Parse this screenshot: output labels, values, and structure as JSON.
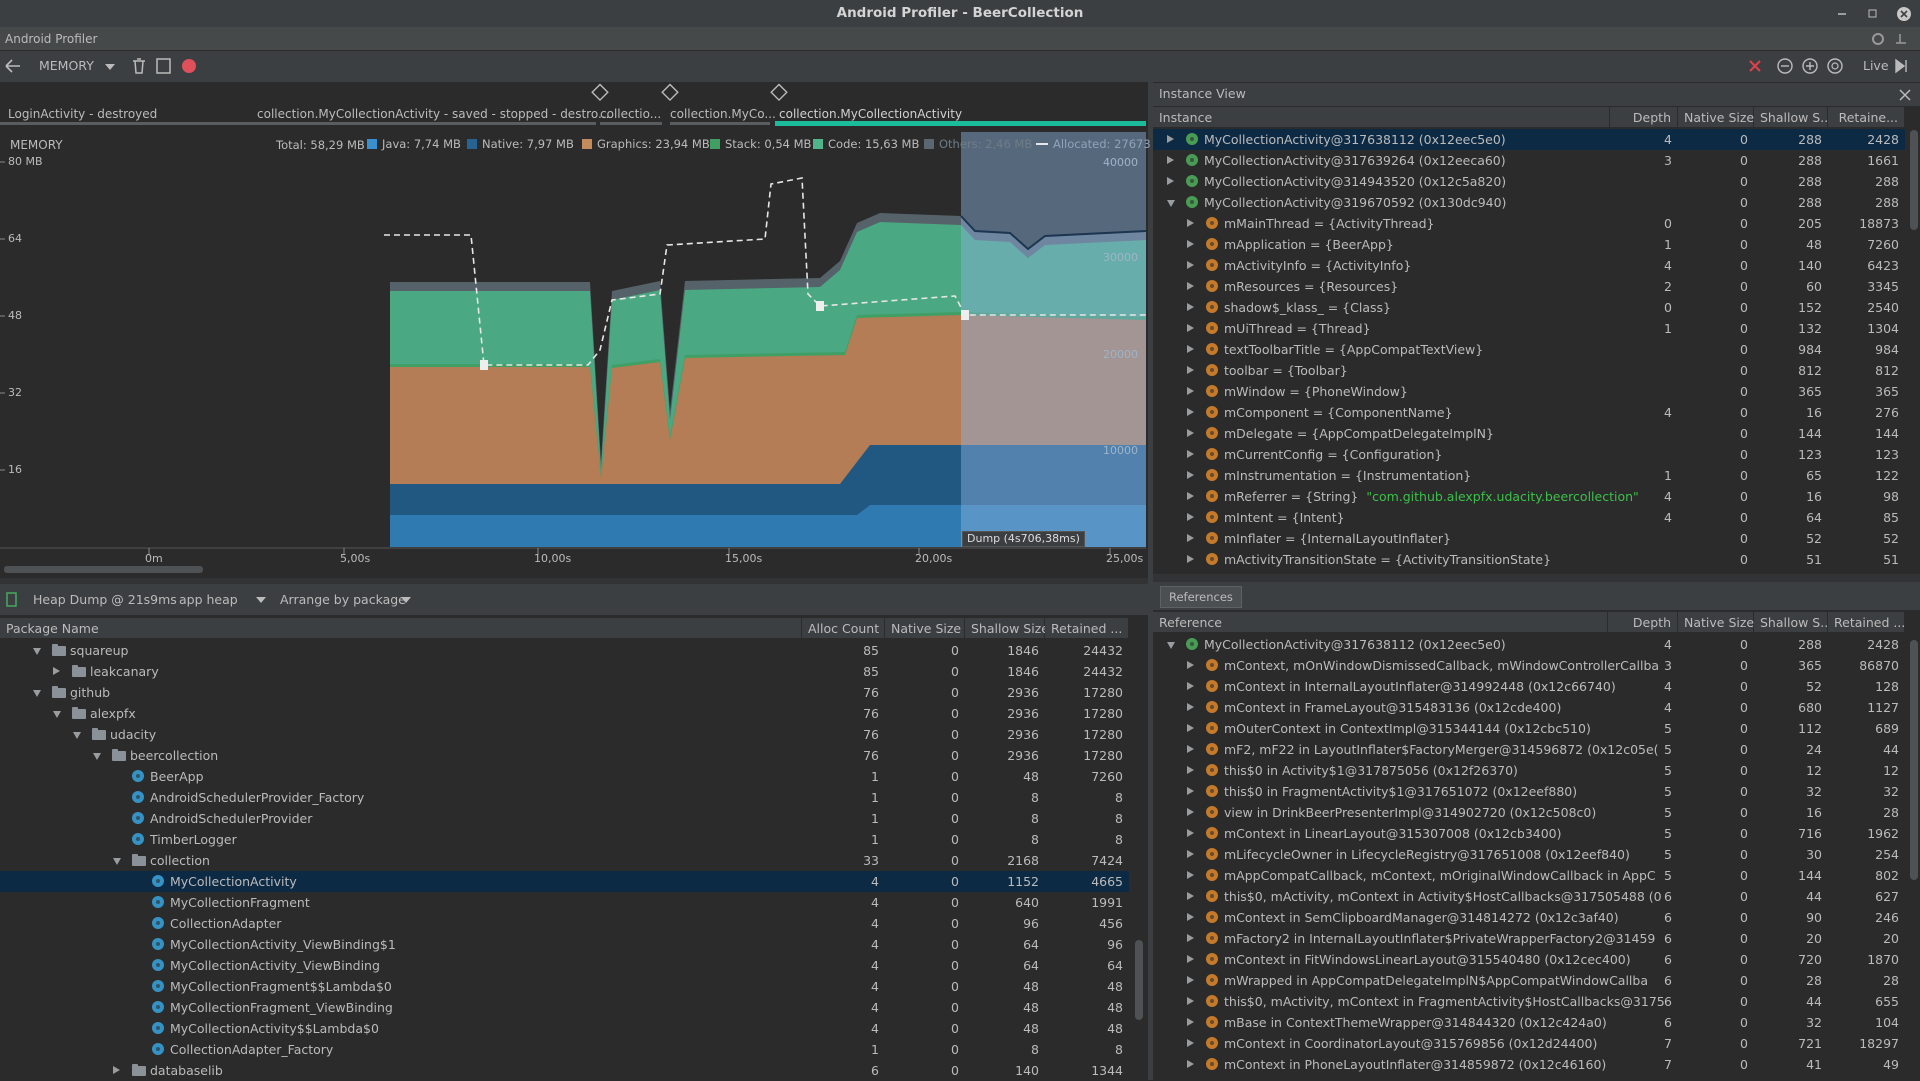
{
  "window": {
    "title": "Android Profiler - BeerCollection",
    "menu": "Android Profiler"
  },
  "toolbar": {
    "profiler": "MEMORY",
    "live": "Live"
  },
  "timeline": {
    "activities": [
      "LoginActivity - destroyed",
      "collection.MyCollectionActivity - saved - stopped - destro...",
      "collectio...",
      "collection.MyCo...",
      "collection.MyCollectionActivity"
    ],
    "dump_label": "Dump (4s706,38ms)"
  },
  "memory": {
    "label": "MEMORY",
    "total": "Total: 58,29 MB",
    "legend": [
      {
        "label": "Java: 7,74 MB",
        "color": "#3a8fcf"
      },
      {
        "label": "Native: 7,97 MB",
        "color": "#276392"
      },
      {
        "label": "Graphics: 23,94 MB",
        "color": "#c38a5b"
      },
      {
        "label": "Stack: 0,54 MB",
        "color": "#3f9f65"
      },
      {
        "label": "Code: 15,63 MB",
        "color": "#4fb58a"
      },
      {
        "label": "Others: 2,46 MB",
        "color": "#5b6770"
      }
    ],
    "allocated": "Allocated: 27673",
    "y_labels": [
      "80 MB",
      "64",
      "48",
      "32",
      "16"
    ],
    "y2_labels": [
      "40000",
      "30000",
      "20000",
      "10000"
    ],
    "time_labels": [
      "0m",
      "5,00s",
      "10,00s",
      "15,00s",
      "20,00s",
      "25,00s"
    ]
  },
  "heap_dump": {
    "title": "Heap Dump @ 21s9ms",
    "heap": "app heap",
    "arrange": "Arrange by package",
    "columns": [
      "Package Name",
      "Alloc Count",
      "Native Size",
      "Shallow Size",
      "Retained ..."
    ],
    "rows": [
      {
        "name": "squareup",
        "values": [
          85,
          0,
          1846,
          24432
        ]
      },
      {
        "name": "leakcanary",
        "values": [
          85,
          0,
          1846,
          24432
        ]
      },
      {
        "name": "github",
        "values": [
          76,
          0,
          2936,
          17280
        ]
      },
      {
        "name": "alexpfx",
        "values": [
          76,
          0,
          2936,
          17280
        ]
      },
      {
        "name": "udacity",
        "values": [
          76,
          0,
          2936,
          17280
        ]
      },
      {
        "name": "beercollection",
        "values": [
          76,
          0,
          2936,
          17280
        ]
      },
      {
        "name": "BeerApp",
        "values": [
          1,
          0,
          48,
          7260
        ]
      },
      {
        "name": "AndroidSchedulerProvider_Factory",
        "values": [
          1,
          0,
          8,
          8
        ]
      },
      {
        "name": "AndroidSchedulerProvider",
        "values": [
          1,
          0,
          8,
          8
        ]
      },
      {
        "name": "TimberLogger",
        "values": [
          1,
          0,
          8,
          8
        ]
      },
      {
        "name": "collection",
        "values": [
          33,
          0,
          2168,
          7424
        ]
      },
      {
        "name": "MyCollectionActivity",
        "values": [
          4,
          0,
          1152,
          4665
        ]
      },
      {
        "name": "MyCollectionFragment",
        "values": [
          4,
          0,
          640,
          1991
        ]
      },
      {
        "name": "CollectionAdapter",
        "values": [
          4,
          0,
          96,
          456
        ]
      },
      {
        "name": "MyCollectionActivity_ViewBinding$1",
        "values": [
          4,
          0,
          64,
          96
        ]
      },
      {
        "name": "MyCollectionActivity_ViewBinding",
        "values": [
          4,
          0,
          64,
          64
        ]
      },
      {
        "name": "MyCollectionFragment$$Lambda$0",
        "values": [
          4,
          0,
          48,
          48
        ]
      },
      {
        "name": "MyCollectionFragment_ViewBinding",
        "values": [
          4,
          0,
          48,
          48
        ]
      },
      {
        "name": "MyCollectionActivity$$Lambda$0",
        "values": [
          4,
          0,
          48,
          48
        ]
      },
      {
        "name": "CollectionAdapter_Factory",
        "values": [
          1,
          0,
          8,
          8
        ]
      },
      {
        "name": "databaselib",
        "values": [
          6,
          0,
          140,
          1344
        ]
      }
    ]
  },
  "instance_view": {
    "title": "Instance View",
    "columns": [
      "Instance",
      "Depth",
      "Native Size",
      "Shallow S...",
      "Retaine..."
    ],
    "rows": [
      {
        "name": "MyCollectionActivity@317638112 (0x12eec5e0)",
        "values": [
          4,
          0,
          288,
          2428
        ]
      },
      {
        "name": "MyCollectionActivity@317639264 (0x12eeca60)",
        "values": [
          3,
          0,
          288,
          1661
        ]
      },
      {
        "name": "MyCollectionActivity@314943520 (0x12c5a820)",
        "values": [
          null,
          0,
          288,
          288
        ]
      },
      {
        "name": "MyCollectionActivity@319670592 (0x130dc940)",
        "values": [
          null,
          0,
          288,
          288
        ]
      },
      {
        "name": "mMainThread = {ActivityThread}",
        "values": [
          0,
          0,
          205,
          18873
        ]
      },
      {
        "name": "mApplication = {BeerApp}",
        "values": [
          1,
          0,
          48,
          7260
        ]
      },
      {
        "name": "mActivityInfo = {ActivityInfo}",
        "values": [
          4,
          0,
          140,
          6423
        ]
      },
      {
        "name": "mResources = {Resources}",
        "values": [
          2,
          0,
          60,
          3345
        ]
      },
      {
        "name": "shadow$_klass_ = {Class}",
        "values": [
          0,
          0,
          152,
          2540
        ]
      },
      {
        "name": "mUiThread = {Thread}",
        "values": [
          1,
          0,
          132,
          1304
        ]
      },
      {
        "name": "textToolbarTitle = {AppCompatTextView}",
        "values": [
          null,
          0,
          984,
          984
        ]
      },
      {
        "name": "toolbar = {Toolbar}",
        "values": [
          null,
          0,
          812,
          812
        ]
      },
      {
        "name": "mWindow = {PhoneWindow}",
        "values": [
          null,
          0,
          365,
          365
        ]
      },
      {
        "name": "mComponent = {ComponentName}",
        "values": [
          4,
          0,
          16,
          276
        ]
      },
      {
        "name": "mDelegate = {AppCompatDelegateImplN}",
        "values": [
          null,
          0,
          144,
          144
        ]
      },
      {
        "name": "mCurrentConfig = {Configuration}",
        "values": [
          null,
          0,
          123,
          123
        ]
      },
      {
        "name": "mInstrumentation = {Instrumentation}",
        "values": [
          1,
          0,
          65,
          122
        ]
      },
      {
        "name": "mReferrer = {String}",
        "detail": "\"com.github.alexpfx.udacity.beercollection\"",
        "values": [
          4,
          0,
          16,
          98
        ]
      },
      {
        "name": "mIntent = {Intent}",
        "values": [
          4,
          0,
          64,
          85
        ]
      },
      {
        "name": "mInflater = {InternalLayoutInflater}",
        "values": [
          null,
          0,
          52,
          52
        ]
      },
      {
        "name": "mActivityTransitionState = {ActivityTransitionState}",
        "values": [
          null,
          0,
          51,
          51
        ]
      }
    ]
  },
  "references": {
    "tab": "References",
    "columns": [
      "Reference",
      "Depth",
      "Native Size",
      "Shallow S...",
      "Retained ..."
    ],
    "rows": [
      {
        "name": "MyCollectionActivity@317638112 (0x12eec5e0)",
        "values": [
          4,
          0,
          288,
          2428
        ]
      },
      {
        "name": "mContext, mOnWindowDismissedCallback, mWindowControllerCallba",
        "values": [
          3,
          0,
          365,
          86870
        ]
      },
      {
        "name": "mContext in InternalLayoutInflater@314992448 (0x12c66740)",
        "values": [
          4,
          0,
          52,
          128
        ]
      },
      {
        "name": "mContext in FrameLayout@315483136 (0x12cde400)",
        "values": [
          4,
          0,
          680,
          1127
        ]
      },
      {
        "name": "mOuterContext in ContextImpl@315344144 (0x12cbc510)",
        "values": [
          5,
          0,
          112,
          689
        ]
      },
      {
        "name": "mF2, mF22 in LayoutInflater$FactoryMerger@314596872 (0x12c05e(",
        "values": [
          5,
          0,
          24,
          44
        ]
      },
      {
        "name": "this$0 in Activity$1@317875056 (0x12f26370)",
        "values": [
          5,
          0,
          12,
          12
        ]
      },
      {
        "name": "this$0 in FragmentActivity$1@317651072 (0x12eef880)",
        "values": [
          5,
          0,
          32,
          32
        ]
      },
      {
        "name": "view in DrinkBeerPresenterImpl@314902720 (0x12c508c0)",
        "values": [
          5,
          0,
          16,
          28
        ]
      },
      {
        "name": "mContext in LinearLayout@315307008 (0x12cb3400)",
        "values": [
          5,
          0,
          716,
          1962
        ]
      },
      {
        "name": "mLifecycleOwner in LifecycleRegistry@317651008 (0x12eef840)",
        "values": [
          5,
          0,
          30,
          254
        ]
      },
      {
        "name": "mAppCompatCallback, mContext, mOriginalWindowCallback in AppC",
        "values": [
          5,
          0,
          144,
          802
        ]
      },
      {
        "name": "this$0, mActivity, mContext in Activity$HostCallbacks@317505488 (0",
        "values": [
          6,
          0,
          44,
          627
        ]
      },
      {
        "name": "mContext in SemClipboardManager@314814272 (0x12c3af40)",
        "values": [
          6,
          0,
          90,
          246
        ]
      },
      {
        "name": "mFactory2 in InternalLayoutInflater$PrivateWrapperFactory2@31459",
        "values": [
          6,
          0,
          20,
          20
        ]
      },
      {
        "name": "mContext in FitWindowsLinearLayout@315540480 (0x12cec400)",
        "values": [
          6,
          0,
          720,
          1870
        ]
      },
      {
        "name": "mWrapped in AppCompatDelegateImplN$AppCompatWindowCallba",
        "values": [
          6,
          0,
          28,
          28
        ]
      },
      {
        "name": "this$0, mActivity, mContext in FragmentActivity$HostCallbacks@3175",
        "values": [
          6,
          0,
          44,
          655
        ]
      },
      {
        "name": "mBase in ContextThemeWrapper@314844320 (0x12c424a0)",
        "values": [
          6,
          0,
          32,
          104
        ]
      },
      {
        "name": "mContext in CoordinatorLayout@315769856 (0x12d24400)",
        "values": [
          7,
          0,
          721,
          18297
        ]
      },
      {
        "name": "mContext in PhoneLayoutInflater@314859872 (0x12c46160)",
        "values": [
          7,
          0,
          41,
          49
        ]
      }
    ]
  }
}
